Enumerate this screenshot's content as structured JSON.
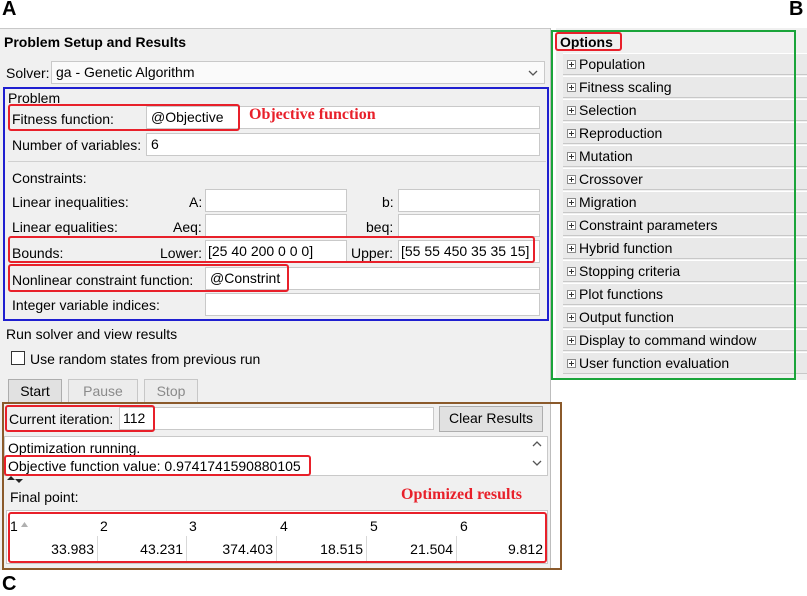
{
  "corners": {
    "a": "A",
    "b": "B",
    "c": "C"
  },
  "window": {
    "title": "Problem Setup and Results"
  },
  "solver": {
    "label": "Solver:",
    "value": "ga - Genetic Algorithm"
  },
  "problem": {
    "section_label": "Problem",
    "fitness_label": "Fitness function:",
    "fitness_value": "@Objective",
    "fitness_annotation": "Objective function",
    "numvars_label": "Number of variables:",
    "numvars_value": "6",
    "constraints_label": "Constraints:",
    "lin_ineq_label": "Linear inequalities:",
    "a_label": "A:",
    "b_label": "b:",
    "lin_eq_label": "Linear equalities:",
    "aeq_label": "Aeq:",
    "beq_label": "beq:",
    "bounds_label": "Bounds:",
    "lower_label": "Lower:",
    "lower_value": "[25 40 200 0 0 0]",
    "upper_label": "Upper:",
    "upper_value": "[55 55 450 35 35 15]",
    "nonlin_label": "Nonlinear constraint function:",
    "nonlin_value": "@Constrint",
    "intvar_label": "Integer variable indices:"
  },
  "run": {
    "section_label": "Run solver and view results",
    "random_states_label": "Use random states from previous run",
    "start_label": "Start",
    "pause_label": "Pause",
    "stop_label": "Stop",
    "iteration_label": "Current iteration:",
    "iteration_value": "112",
    "clear_label": "Clear Results",
    "status_line1": "Optimization running.",
    "status_line2": "Objective function value: 0.9741741590880105",
    "final_point_label": "Final point:",
    "optimized_annotation": "Optimized results"
  },
  "results": {
    "columns": [
      "1",
      "2",
      "3",
      "4",
      "5",
      "6"
    ],
    "values": [
      "33.983",
      "43.231",
      "374.403",
      "18.515",
      "21.504",
      "9.812"
    ]
  },
  "options": {
    "title": "Options",
    "items": [
      "Population",
      "Fitness scaling",
      "Selection",
      "Reproduction",
      "Mutation",
      "Crossover",
      "Migration",
      "Constraint parameters",
      "Hybrid function",
      "Stopping criteria",
      "Plot functions",
      "Output function",
      "Display to command window",
      "User function evaluation"
    ]
  },
  "colors": {
    "annotation_red": "#e8202a",
    "problem_box_blue": "#1f1fd0",
    "options_box_green": "#1aa43a",
    "results_box_brown": "#8b5a2b"
  }
}
